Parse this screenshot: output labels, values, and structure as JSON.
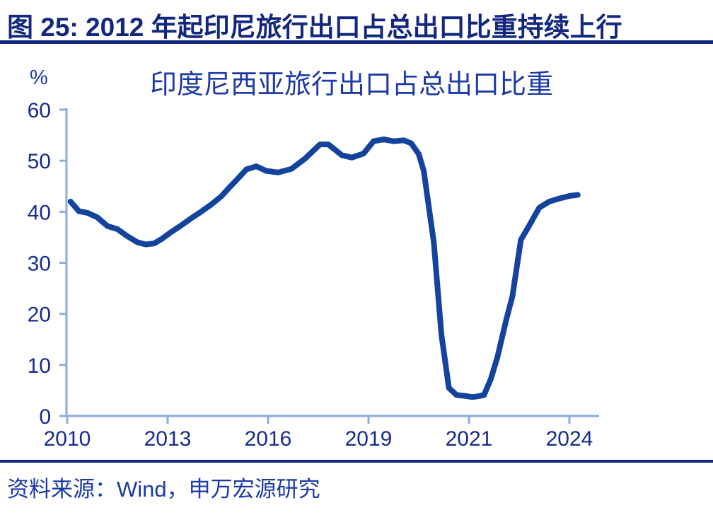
{
  "figure": {
    "title": "图 25: 2012 年起印尼旅行出口占总出口比重持续上行",
    "source": "资料来源：Wind，申万宏源研究"
  },
  "chart_data": {
    "type": "line",
    "title": "印度尼西亚旅行出口占总出口比重",
    "unit_label": "%",
    "xlabel": "",
    "ylabel": "%",
    "ylim": [
      0,
      60
    ],
    "y_ticks": [
      0,
      10,
      20,
      30,
      40,
      50,
      60
    ],
    "x_tick_labels": [
      "2010",
      "2013",
      "2016",
      "2019",
      "2021",
      "2024"
    ],
    "x_tick_years": [
      2010,
      2013,
      2016,
      2019,
      2021,
      2024
    ],
    "grid": false,
    "legend_position": "none",
    "colors": {
      "line": "#13439c",
      "axis": "#8aaedd",
      "tick_label": "#162c8f",
      "title_navy": "#14277f",
      "chart_text_blue": "#1c3aa6"
    },
    "series": [
      {
        "name": "印度尼西亚旅行出口占总出口比重",
        "points": [
          [
            2010.1,
            42.0
          ],
          [
            2010.35,
            40.1
          ],
          [
            2010.6,
            39.8
          ],
          [
            2010.9,
            38.9
          ],
          [
            2011.2,
            37.2
          ],
          [
            2011.5,
            36.6
          ],
          [
            2011.8,
            35.2
          ],
          [
            2012.1,
            34.0
          ],
          [
            2012.35,
            33.6
          ],
          [
            2012.6,
            33.8
          ],
          [
            2012.85,
            34.8
          ],
          [
            2013.1,
            36.0
          ],
          [
            2013.4,
            37.3
          ],
          [
            2013.7,
            38.7
          ],
          [
            2014.0,
            40.0
          ],
          [
            2014.3,
            41.4
          ],
          [
            2014.6,
            43.0
          ],
          [
            2014.85,
            44.8
          ],
          [
            2015.1,
            46.5
          ],
          [
            2015.35,
            48.3
          ],
          [
            2015.65,
            48.9
          ],
          [
            2015.95,
            48.0
          ],
          [
            2016.3,
            47.7
          ],
          [
            2016.7,
            48.4
          ],
          [
            2017.1,
            50.4
          ],
          [
            2017.55,
            53.2
          ],
          [
            2017.8,
            53.2
          ],
          [
            2018.2,
            51.1
          ],
          [
            2018.5,
            50.6
          ],
          [
            2018.85,
            51.4
          ],
          [
            2019.1,
            53.8
          ],
          [
            2019.3,
            54.2
          ],
          [
            2019.5,
            53.8
          ],
          [
            2019.7,
            54.0
          ],
          [
            2019.85,
            53.4
          ],
          [
            2020.0,
            51.3
          ],
          [
            2020.1,
            48.0
          ],
          [
            2020.3,
            34.0
          ],
          [
            2020.45,
            16.0
          ],
          [
            2020.6,
            5.5
          ],
          [
            2020.75,
            4.1
          ],
          [
            2020.95,
            3.9
          ],
          [
            2021.1,
            3.7
          ],
          [
            2021.3,
            3.9
          ],
          [
            2021.45,
            4.1
          ],
          [
            2021.65,
            7.2
          ],
          [
            2021.85,
            11.5
          ],
          [
            2022.1,
            18.5
          ],
          [
            2022.3,
            23.5
          ],
          [
            2022.55,
            34.5
          ],
          [
            2022.8,
            37.3
          ],
          [
            2023.1,
            40.8
          ],
          [
            2023.4,
            42.0
          ],
          [
            2023.7,
            42.6
          ],
          [
            2024.0,
            43.1
          ],
          [
            2024.25,
            43.3
          ]
        ]
      }
    ]
  }
}
